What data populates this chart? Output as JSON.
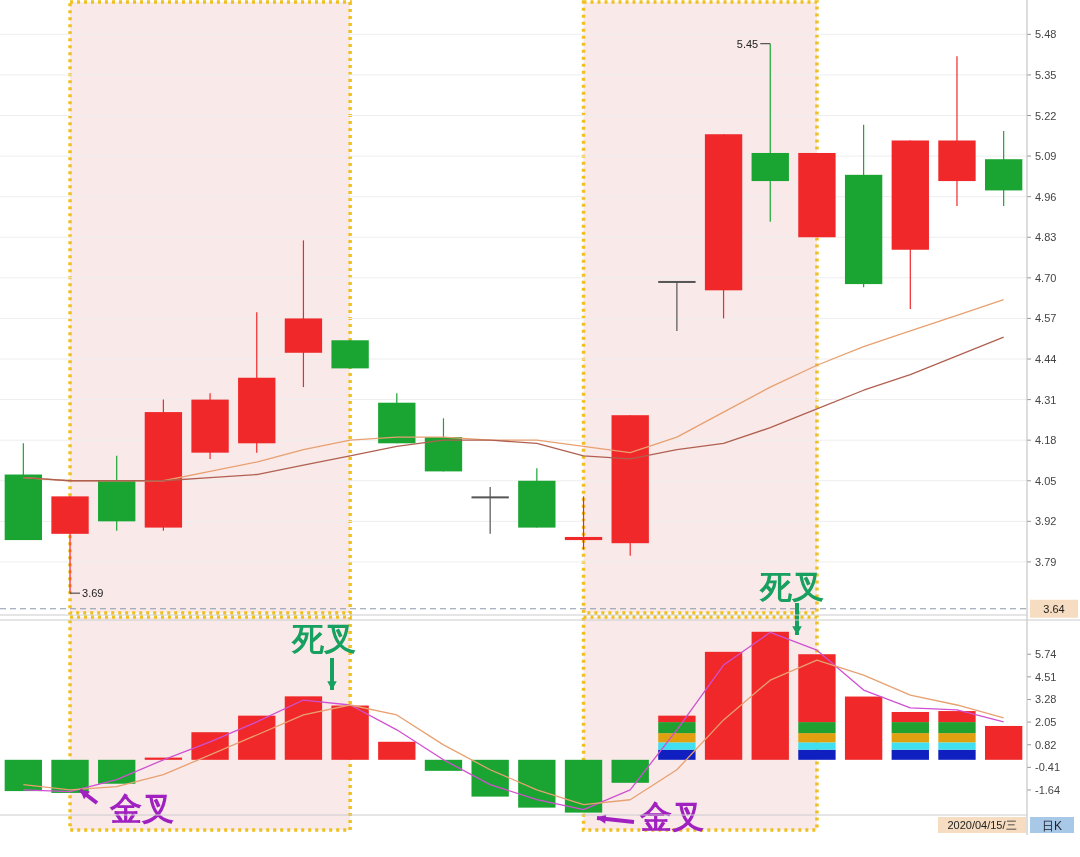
{
  "chart_data": [
    {
      "type": "candlestick",
      "categories": [
        null,
        null,
        null,
        null,
        null,
        null,
        null,
        null,
        null,
        null,
        null,
        null,
        null,
        null,
        null,
        null,
        null,
        null,
        null,
        null,
        null,
        null
      ],
      "ohlc": [
        [
          4.07,
          4.17,
          3.86,
          3.86
        ],
        [
          3.88,
          4.0,
          3.69,
          4.0
        ],
        [
          4.05,
          4.13,
          3.89,
          3.92
        ],
        [
          3.9,
          4.31,
          3.89,
          4.27
        ],
        [
          4.14,
          4.33,
          4.12,
          4.31
        ],
        [
          4.17,
          4.59,
          4.14,
          4.38
        ],
        [
          4.46,
          4.82,
          4.35,
          4.57
        ],
        [
          4.5,
          4.5,
          4.41,
          4.41
        ],
        [
          4.3,
          4.33,
          4.17,
          4.17
        ],
        [
          4.19,
          4.25,
          4.08,
          4.08
        ],
        [
          4.0,
          4.03,
          3.88,
          4.0
        ],
        [
          4.05,
          4.09,
          3.9,
          3.9
        ],
        [
          3.86,
          4.0,
          3.83,
          3.87
        ],
        [
          3.85,
          4.26,
          3.81,
          4.26
        ],
        [
          4.69,
          4.69,
          4.53,
          4.69
        ],
        [
          4.66,
          5.16,
          4.57,
          5.16
        ],
        [
          5.1,
          5.45,
          4.88,
          5.01
        ],
        [
          4.83,
          5.1,
          4.83,
          5.1
        ],
        [
          5.03,
          5.19,
          4.67,
          4.68
        ],
        [
          4.79,
          5.14,
          4.6,
          5.14
        ],
        [
          5.01,
          5.41,
          4.93,
          5.14
        ],
        [
          5.08,
          5.17,
          4.93,
          4.98
        ]
      ],
      "colors": [
        "#1aa532",
        "#f0282a",
        "#1aa532",
        "#f0282a",
        "#f0282a",
        "#f0282a",
        "#f0282a",
        "#1aa532",
        "#1aa532",
        "#1aa532",
        "#555555",
        "#1aa532",
        "#f0282a",
        "#f0282a",
        "#555555",
        "#f0282a",
        "#1aa532",
        "#f0282a",
        "#1aa532",
        "#f0282a",
        "#f0282a",
        "#1aa532"
      ],
      "series": [
        {
          "type": "line",
          "color": "#e8a070",
          "values": [
            4.06,
            4.05,
            4.05,
            4.05,
            4.08,
            4.11,
            4.15,
            4.18,
            4.19,
            4.19,
            4.18,
            4.18,
            4.16,
            4.14,
            4.19,
            4.27,
            4.35,
            4.42,
            4.48,
            4.53,
            4.58,
            4.63
          ]
        },
        {
          "type": "line",
          "color": "#b06050",
          "values": [
            4.06,
            4.05,
            4.05,
            4.05,
            4.06,
            4.07,
            4.1,
            4.13,
            4.16,
            4.18,
            4.18,
            4.17,
            4.13,
            4.12,
            4.15,
            4.17,
            4.22,
            4.28,
            4.34,
            4.39,
            4.45,
            4.51
          ]
        }
      ],
      "ylim": [
        3.62,
        5.59
      ],
      "yticks": [
        3.79,
        3.92,
        4.05,
        4.18,
        4.31,
        4.44,
        4.57,
        {
          "value": 4.7,
          "label": "4.70"
        },
        4.83,
        4.96,
        5.09,
        5.22,
        5.35,
        5.48
      ],
      "grid": "y",
      "ref_lines": [
        {
          "axis": "y",
          "value": 3.64,
          "label": "3.64",
          "line_style": "dashed",
          "color": "#8899aa"
        }
      ],
      "annotations": [
        "5.45",
        "3.69"
      ]
    },
    {
      "type": "bar",
      "stacked": true,
      "categories": [
        null,
        null,
        null,
        null,
        null,
        null,
        null,
        null,
        null,
        null,
        null,
        null,
        null,
        null,
        null,
        null,
        null,
        null,
        null,
        null,
        null,
        null
      ],
      "series": [
        {
          "color": "#1aa532",
          "values": [
            -1.7,
            -1.8,
            -1.3,
            null,
            null,
            null,
            null,
            null,
            null,
            -0.6,
            -2.0,
            -2.6,
            -2.87,
            -1.25,
            null,
            null,
            null,
            null,
            null,
            null,
            null,
            null
          ]
        },
        {
          "color": "#1020c0",
          "values": [
            null,
            null,
            null,
            null,
            null,
            null,
            null,
            null,
            null,
            null,
            null,
            null,
            null,
            null,
            0.55,
            null,
            null,
            0.55,
            null,
            0.55,
            0.55,
            null
          ]
        },
        {
          "color": "#40e0f0",
          "values": [
            null,
            null,
            null,
            null,
            null,
            null,
            null,
            null,
            null,
            null,
            null,
            null,
            null,
            null,
            0.4,
            null,
            null,
            0.4,
            null,
            0.4,
            0.4,
            null
          ]
        },
        {
          "color": "#e0a010",
          "values": [
            null,
            null,
            null,
            null,
            null,
            null,
            null,
            null,
            null,
            null,
            null,
            null,
            null,
            null,
            0.5,
            null,
            null,
            0.5,
            null,
            0.5,
            0.5,
            null
          ]
        },
        {
          "color": "#20a030",
          "values": [
            null,
            null,
            null,
            null,
            null,
            null,
            null,
            null,
            null,
            null,
            null,
            null,
            null,
            null,
            0.6,
            null,
            null,
            0.6,
            null,
            0.6,
            0.6,
            null
          ]
        },
        {
          "color": "#f0282a",
          "values": [
            null,
            null,
            null,
            0.12,
            1.5,
            2.4,
            3.45,
            2.95,
            0.98,
            null,
            null,
            null,
            null,
            null,
            0.35,
            5.87,
            6.96,
            3.69,
            3.44,
            0.55,
            0.6,
            1.84
          ]
        },
        {
          "type": "line",
          "color": "#d050d0",
          "values": [
            -1.63,
            -1.73,
            -1.08,
            0,
            0.98,
            2.06,
            3.25,
            2.98,
            1.63,
            0,
            -1.35,
            -2.17,
            -2.71,
            -1.63,
            1.63,
            5.15,
            6.93,
            5.96,
            3.79,
            2.82,
            2.71,
            2.06
          ]
        },
        {
          "type": "line",
          "color": "#e8a070",
          "values": [
            -1.35,
            -1.63,
            -1.46,
            -0.81,
            0.27,
            1.35,
            2.44,
            2.98,
            2.44,
            0.81,
            -0.54,
            -1.63,
            -2.44,
            -2.17,
            -0.54,
            2.17,
            4.33,
            5.42,
            4.6,
            3.52,
            2.98,
            2.28
          ]
        }
      ],
      "ylim": [
        -3.0,
        7.6
      ],
      "yticks": [
        -1.64,
        -0.41,
        0.82,
        2.05,
        3.28,
        4.51,
        5.74
      ],
      "annotations": [
        "金叉",
        "死叉",
        "金叉",
        "死叉",
        "2020/04/15/三",
        "日K"
      ]
    }
  ]
}
